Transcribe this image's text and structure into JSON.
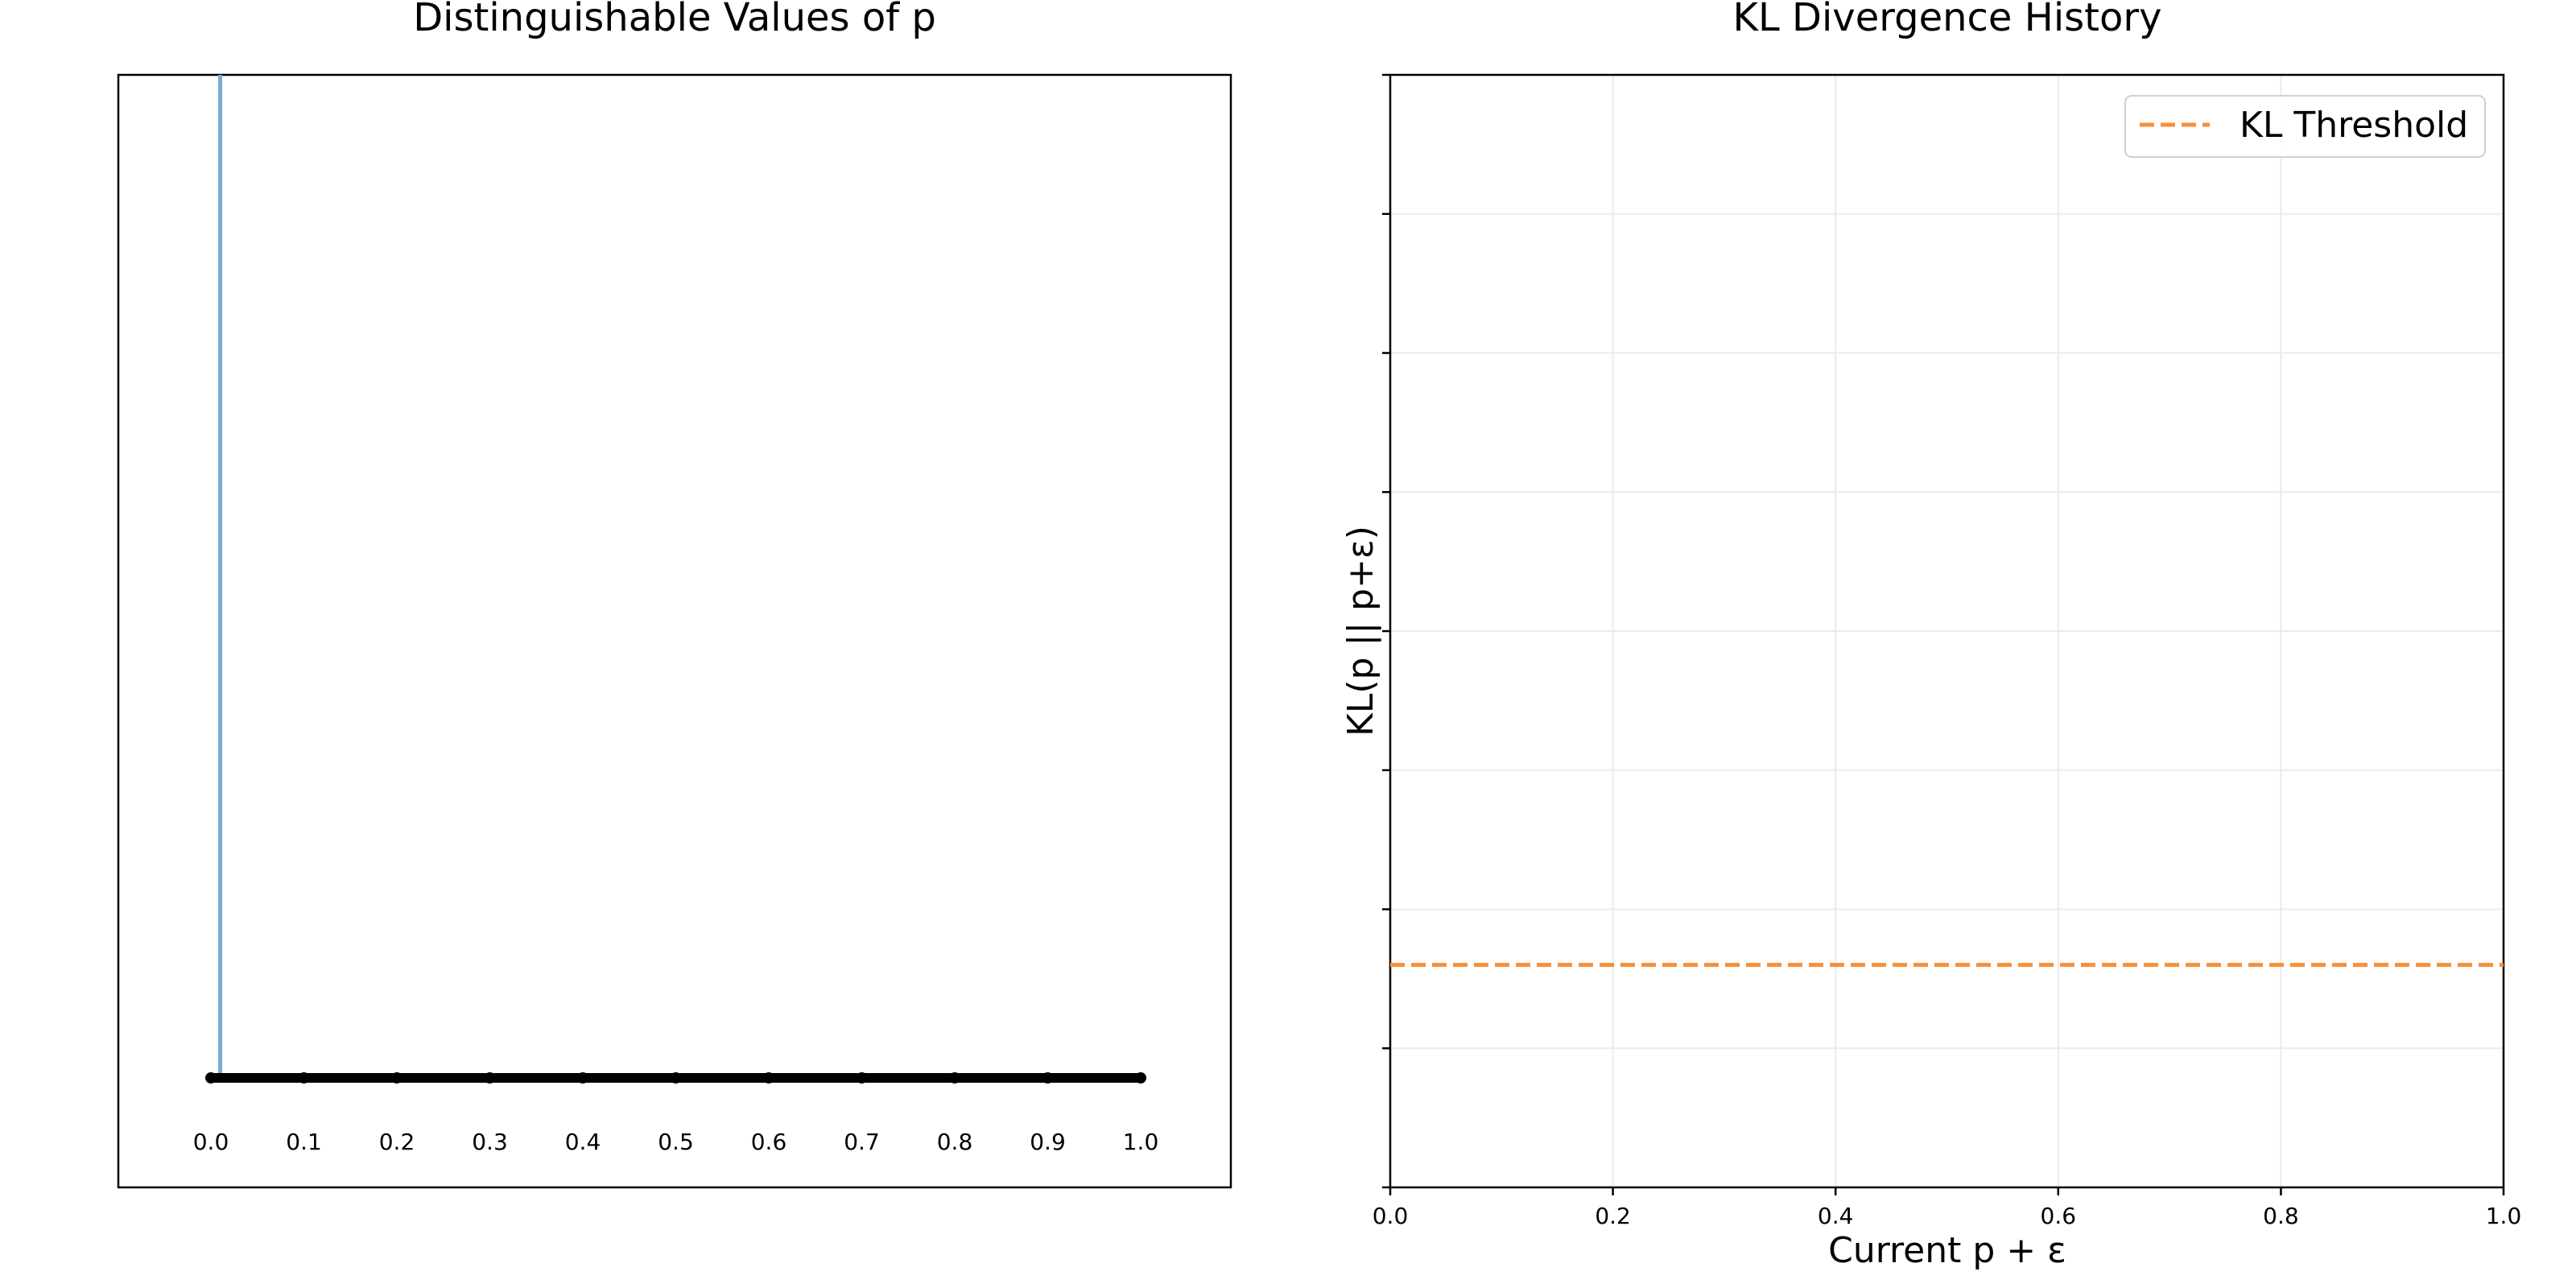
{
  "chart_data": [
    {
      "type": "line",
      "title": "Distinguishable Values of p",
      "xlabel": "",
      "ylabel": "",
      "xlim": [
        0.0,
        1.0
      ],
      "number_line_ticks": [
        "0.0",
        "0.1",
        "0.2",
        "0.3",
        "0.4",
        "0.5",
        "0.6",
        "0.7",
        "0.8",
        "0.9",
        "1.0"
      ],
      "number_line_values": [
        0.0,
        0.1,
        0.2,
        0.3,
        0.4,
        0.5,
        0.6,
        0.7,
        0.8,
        0.9,
        1.0
      ],
      "marker_line": {
        "x": 0.01,
        "color": "#7eaad0"
      },
      "number_line_color": "#000000",
      "grid": false
    },
    {
      "type": "line",
      "title": "KL Divergence History",
      "xlabel": "Current p + ε",
      "ylabel": "KL(p || p+ε)",
      "xlim": [
        0.0,
        1.0
      ],
      "ylim": [
        0.0,
        1.0
      ],
      "xticks": [
        "0.0",
        "0.2",
        "0.4",
        "0.6",
        "0.8",
        "1.0"
      ],
      "xtick_values": [
        0.0,
        0.2,
        0.4,
        0.6,
        0.8,
        1.0
      ],
      "ytick_values": [
        0.0,
        0.125,
        0.25,
        0.375,
        0.5,
        0.625,
        0.75,
        0.875,
        1.0
      ],
      "grid": true,
      "legend": {
        "placement": "top-right",
        "entries": [
          "KL Threshold"
        ]
      },
      "series": [
        {
          "name": "KL Threshold",
          "style": "dashed",
          "color": "#f5913a",
          "y_constant": 0.2,
          "values": []
        }
      ]
    }
  ]
}
